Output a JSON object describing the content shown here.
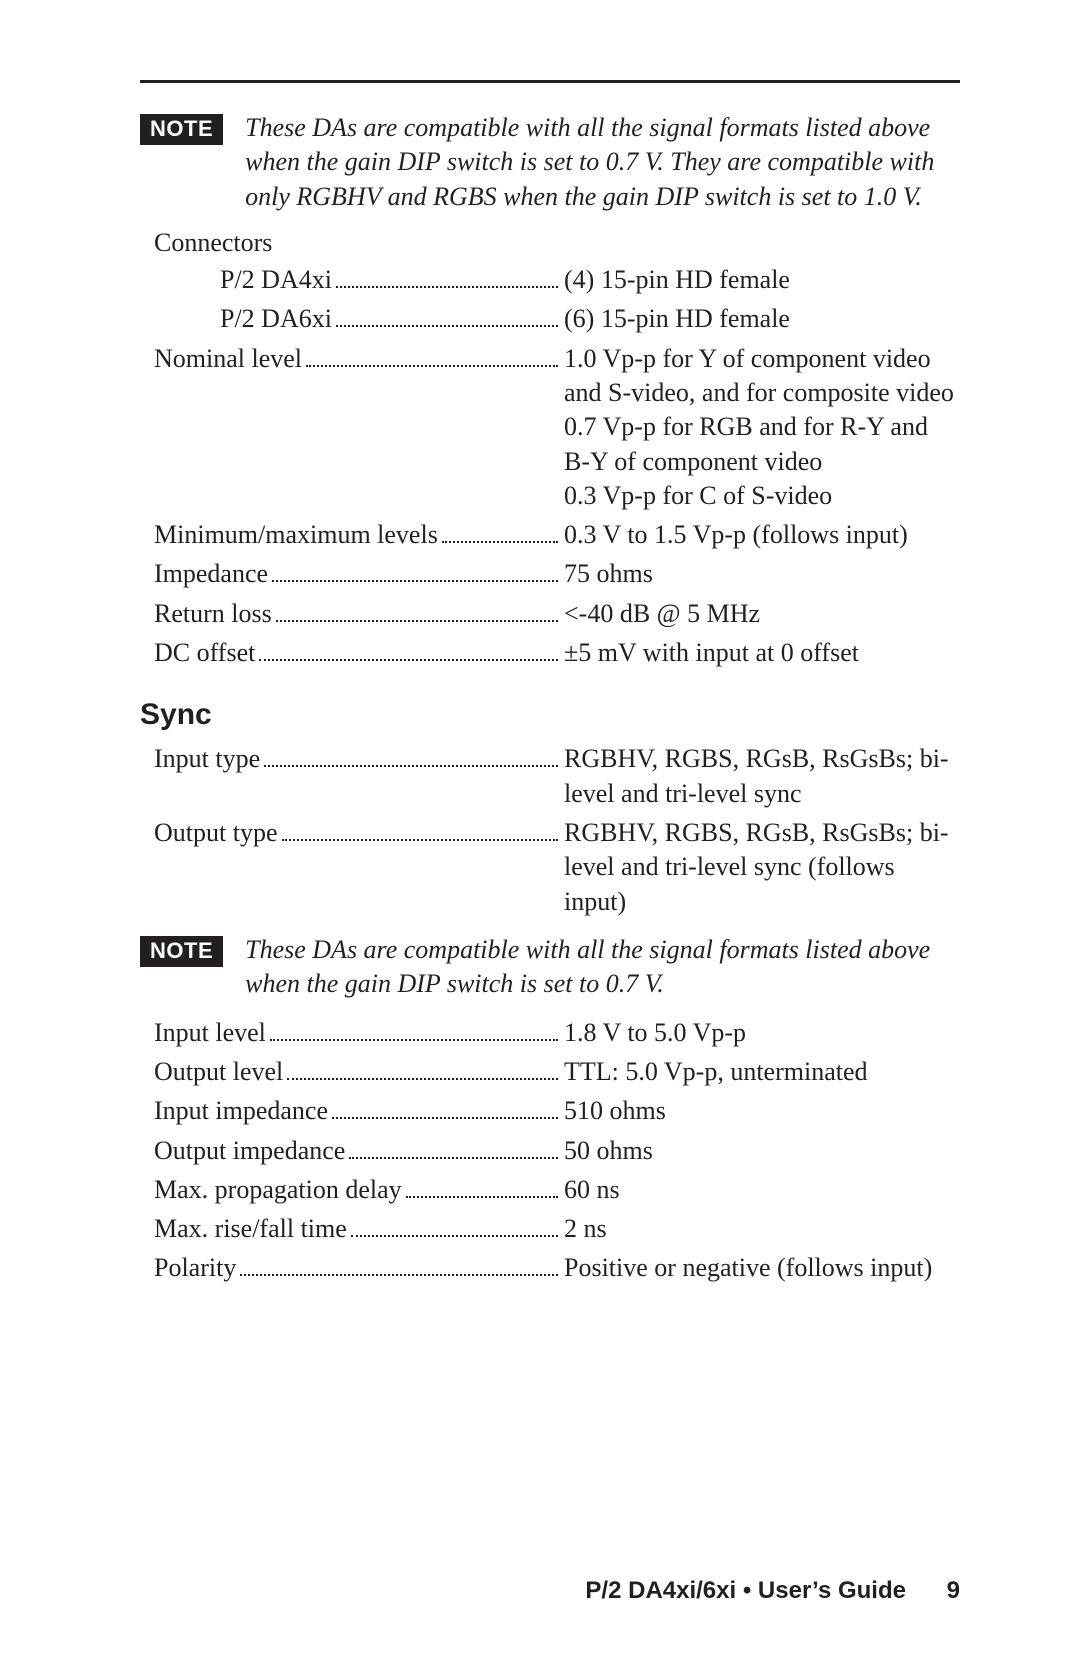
{
  "note1": {
    "badge": "NOTE",
    "text": "These DAs are compatible with all the signal formats listed above when the gain DIP switch is set to 0.7 V.  They are compatible with only RGBHV and RGBS when the gain DIP switch is set to 1.0 V."
  },
  "connectors": {
    "heading": "Connectors",
    "rows": [
      {
        "label": "P/2 DA4xi",
        "value": "(4) 15-pin HD female",
        "indent": true
      },
      {
        "label": "P/2 DA6xi",
        "value": "(6) 15-pin HD female",
        "indent": true
      }
    ]
  },
  "video": {
    "rows": [
      {
        "label": "Nominal level",
        "value": "1.0 Vp-p for Y of component video and S-video, and for composite video\n0.7 Vp-p for RGB and for R-Y and B-Y of component video\n0.3 Vp-p for C of S-video"
      },
      {
        "label": "Minimum/maximum levels",
        "value": "0.3 V to 1.5 Vp-p (follows input)"
      },
      {
        "label": "Impedance",
        "value": "75 ohms"
      },
      {
        "label": "Return loss",
        "value": "<-40 dB @ 5 MHz"
      },
      {
        "label": "DC offset",
        "value": "±5 mV with input at 0 offset"
      }
    ]
  },
  "sync": {
    "title": "Sync",
    "rows1": [
      {
        "label": "Input type",
        "value": "RGBHV, RGBS, RGsB, RsGsBs; bi-level and tri-level sync"
      },
      {
        "label": "Output type",
        "value": "RGBHV, RGBS, RGsB, RsGsBs; bi-level and tri-level sync (follows input)"
      }
    ],
    "note": {
      "badge": "NOTE",
      "text": "These DAs are compatible with all the signal formats listed above when the gain DIP switch is set to 0.7 V."
    },
    "rows2": [
      {
        "label": "Input level",
        "value": "1.8 V to 5.0 Vp-p"
      },
      {
        "label": "Output level",
        "value": "TTL: 5.0 Vp-p, unterminated"
      },
      {
        "label": "Input impedance",
        "value": "510 ohms"
      },
      {
        "label": "Output impedance",
        "value": "50 ohms"
      },
      {
        "label": "Max. propagation delay",
        "value": "60 ns"
      },
      {
        "label": "Max. rise/fall time",
        "value": "2 ns"
      },
      {
        "label": "Polarity",
        "value": "Positive or negative (follows input)"
      }
    ]
  },
  "footer": {
    "title": "P/2 DA4xi/6xi • User’s Guide",
    "page": "9"
  }
}
